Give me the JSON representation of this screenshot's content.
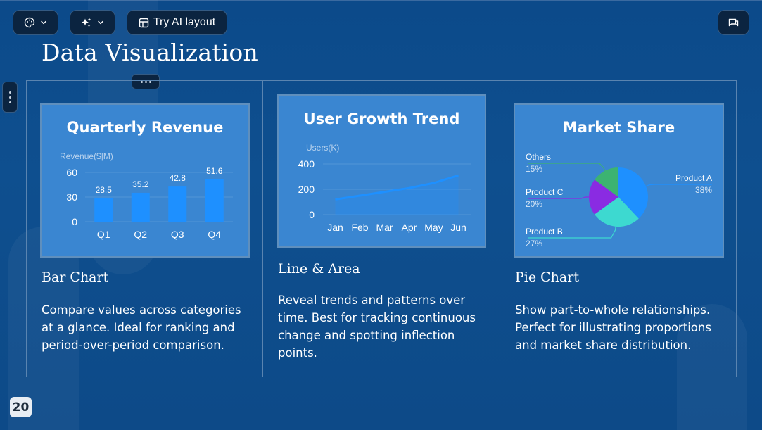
{
  "toolbar": {
    "theme_icon": "palette-icon",
    "magic_icon": "sparkles-icon",
    "dropdown_icon": "chevron-down-icon",
    "layout_icon": "layout-icon",
    "try_ai_label": "Try AI layout",
    "comment_icon": "comment-icon"
  },
  "slide": {
    "title": "Data Visualization",
    "page_number": "20",
    "cards": [
      {
        "heading": "Bar Chart",
        "description": "Compare values across categories at a glance. Ideal for ranking and period-over-period comparison."
      },
      {
        "heading": "Line & Area",
        "description": "Reveal trends and patterns over time. Best for tracking continuous change and spotting inflection points."
      },
      {
        "heading": "Pie Chart",
        "description": "Show part-to-whole relationships. Perfect for illustrating proportions and market share distribution."
      }
    ]
  },
  "colors": {
    "background": "#0d4a88",
    "chart_panel": "#3a86d1",
    "bar": "#1e90ff",
    "line": "#1e90ff",
    "pie_a": "#1e90ff",
    "pie_b": "#3dd9d0",
    "pie_c": "#8a2be2",
    "pie_others": "#3cb371"
  },
  "chart_data": [
    {
      "type": "bar",
      "title": "Quarterly Revenue",
      "ylabel": "Revenue($|M)",
      "categories": [
        "Q1",
        "Q2",
        "Q3",
        "Q4"
      ],
      "values": [
        28.5,
        35.2,
        42.8,
        51.6
      ],
      "value_labels": [
        "28.5",
        "35.2",
        "42.8",
        "51.6"
      ],
      "yticks": [
        "0",
        "30",
        "60"
      ],
      "ylim": [
        0,
        60
      ]
    },
    {
      "type": "area",
      "title": "User Growth Trend",
      "ylabel": "Users(K)",
      "categories": [
        "Jan",
        "Feb",
        "Mar",
        "Apr",
        "May",
        "Jun"
      ],
      "values": [
        120,
        150,
        180,
        210,
        250,
        310
      ],
      "yticks": [
        "0",
        "200",
        "400"
      ],
      "ylim": [
        0,
        400
      ]
    },
    {
      "type": "pie",
      "title": "Market Share",
      "slices": [
        {
          "name": "Product A",
          "value": 38,
          "label": "38%"
        },
        {
          "name": "Product B",
          "value": 27,
          "label": "27%"
        },
        {
          "name": "Product C",
          "value": 20,
          "label": "20%"
        },
        {
          "name": "Others",
          "value": 15,
          "label": "15%"
        }
      ]
    }
  ]
}
